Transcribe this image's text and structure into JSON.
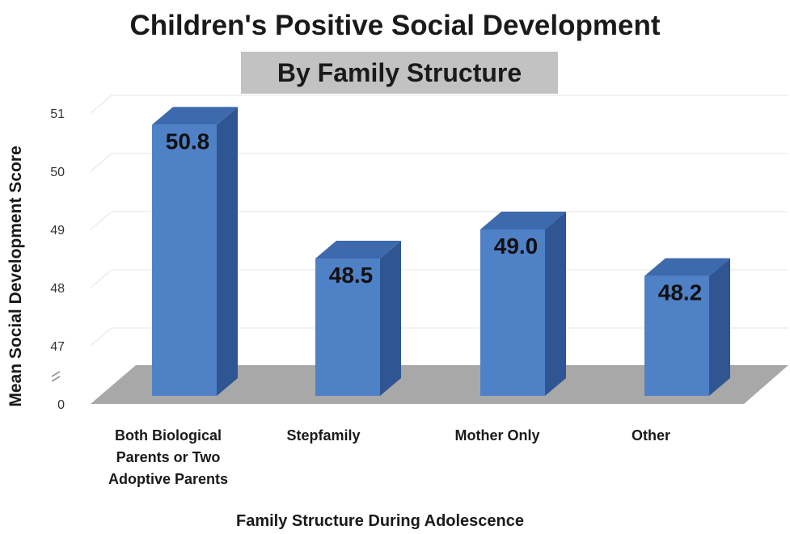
{
  "chart_data": {
    "type": "bar",
    "title": "Children's Positive Social Development",
    "subtitle": "By Family Structure",
    "xlabel": "Family Structure During Adolescence",
    "ylabel": "Mean Social Development Score",
    "categories": [
      "Both Biological Parents or Two Adoptive Parents",
      "Stepfamily",
      "Mother Only",
      "Other"
    ],
    "values": [
      50.8,
      48.5,
      49.0,
      48.2
    ],
    "data_labels": [
      "50.8",
      "48.5",
      "49.0",
      "48.2"
    ],
    "y_ticks": [
      "0",
      "47",
      "48",
      "49",
      "50",
      "51"
    ],
    "axis_break": true,
    "ylim": [
      46.7,
      51
    ],
    "grid": true,
    "legend": "none",
    "colors": {
      "bar_front": "#4f81c7",
      "bar_side": "#2f5592",
      "bar_top": "#3d69ad",
      "floor": "#a8a8a8",
      "gridline": "#e4e4e4"
    }
  }
}
